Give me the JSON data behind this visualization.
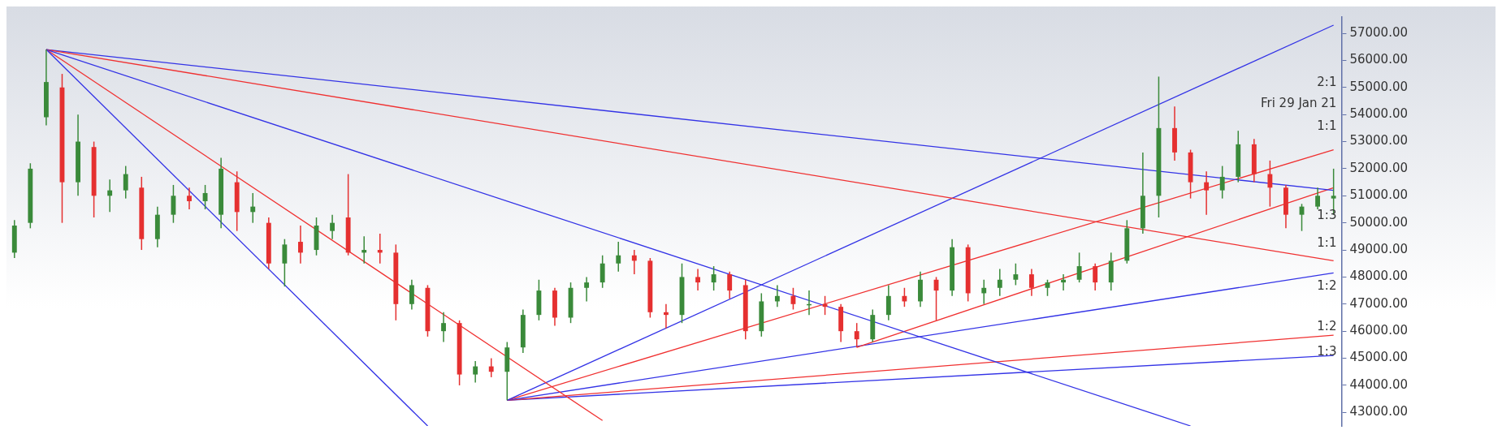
{
  "chart_data": {
    "type": "candlestick",
    "categories": [
      null,
      null,
      null,
      null,
      null,
      null,
      null,
      null,
      null,
      null,
      null,
      null,
      null,
      null,
      null,
      null,
      null,
      null,
      null,
      null,
      null,
      null,
      null,
      null,
      null,
      null,
      null,
      null,
      null,
      null,
      null,
      null,
      null,
      null,
      null,
      null,
      null,
      null,
      null,
      null,
      null,
      null,
      null,
      null,
      null,
      null,
      null,
      null,
      null,
      null,
      null,
      null,
      null,
      null,
      null,
      null,
      null,
      null,
      null,
      null,
      null,
      null,
      null,
      null,
      null,
      null,
      null,
      null,
      null,
      null,
      null,
      null,
      null,
      null,
      null,
      null,
      null,
      null,
      null,
      null,
      null,
      null,
      null,
      null
    ],
    "ohlc": [
      [
        48900,
        50100,
        48700,
        49900
      ],
      [
        50000,
        52200,
        49800,
        52000
      ],
      [
        53900,
        56400,
        53600,
        55200
      ],
      [
        55000,
        55500,
        50000,
        51500
      ],
      [
        51500,
        54000,
        51000,
        53000
      ],
      [
        52800,
        53000,
        50200,
        51000
      ],
      [
        51000,
        51600,
        50400,
        51200
      ],
      [
        51200,
        52100,
        50900,
        51800
      ],
      [
        51300,
        51700,
        49000,
        49400
      ],
      [
        49400,
        50600,
        49100,
        50300
      ],
      [
        50300,
        51400,
        50000,
        51000
      ],
      [
        51000,
        51300,
        50500,
        50800
      ],
      [
        50800,
        51400,
        50500,
        51100
      ],
      [
        50300,
        52400,
        49800,
        52000
      ],
      [
        51500,
        51900,
        49700,
        50400
      ],
      [
        50400,
        51100,
        50000,
        50600
      ],
      [
        50000,
        50200,
        48300,
        48500
      ],
      [
        48500,
        49400,
        47650,
        49200
      ],
      [
        49300,
        49900,
        48500,
        48900
      ],
      [
        49000,
        50200,
        48800,
        49900
      ],
      [
        49700,
        50300,
        49400,
        50000
      ],
      [
        50200,
        51800,
        48800,
        48900
      ],
      [
        48900,
        49500,
        48500,
        49000
      ],
      [
        49000,
        49600,
        48500,
        48900
      ],
      [
        48900,
        49200,
        46400,
        47000
      ],
      [
        47000,
        47900,
        46800,
        47700
      ],
      [
        47600,
        47700,
        45800,
        46000
      ],
      [
        46000,
        46700,
        45600,
        46300
      ],
      [
        46300,
        46400,
        44000,
        44400
      ],
      [
        44400,
        44900,
        44100,
        44700
      ],
      [
        44700,
        45000,
        44300,
        44500
      ],
      [
        44500,
        45600,
        43450,
        45400
      ],
      [
        45400,
        46800,
        45200,
        46600
      ],
      [
        46600,
        47900,
        46400,
        47500
      ],
      [
        47500,
        47600,
        46200,
        46500
      ],
      [
        46500,
        47800,
        46300,
        47600
      ],
      [
        47600,
        48000,
        47100,
        47800
      ],
      [
        47800,
        48800,
        47600,
        48500
      ],
      [
        48500,
        49300,
        48200,
        48800
      ],
      [
        48800,
        49000,
        48100,
        48600
      ],
      [
        48600,
        48700,
        46500,
        46700
      ],
      [
        46700,
        47000,
        46100,
        46600
      ],
      [
        46600,
        48500,
        46300,
        48000
      ],
      [
        48000,
        48300,
        47500,
        47800
      ],
      [
        47800,
        48400,
        47500,
        48100
      ],
      [
        48100,
        48200,
        47200,
        47500
      ],
      [
        47700,
        47900,
        45700,
        46000
      ],
      [
        46000,
        47400,
        45800,
        47100
      ],
      [
        47100,
        47700,
        46900,
        47300
      ],
      [
        47300,
        47600,
        46800,
        47000
      ],
      [
        47000,
        47500,
        46600,
        47000
      ],
      [
        47000,
        47300,
        46600,
        46900
      ],
      [
        46900,
        47000,
        45600,
        46000
      ],
      [
        46000,
        46300,
        45400,
        45700
      ],
      [
        45700,
        46800,
        45600,
        46600
      ],
      [
        46600,
        47700,
        46400,
        47300
      ],
      [
        47300,
        47600,
        46900,
        47100
      ],
      [
        47100,
        48200,
        46900,
        47900
      ],
      [
        47900,
        48000,
        46400,
        47500
      ],
      [
        47500,
        49400,
        47300,
        49100
      ],
      [
        49100,
        49200,
        47100,
        47400
      ],
      [
        47400,
        47900,
        47000,
        47600
      ],
      [
        47600,
        48300,
        47300,
        47900
      ],
      [
        47900,
        48500,
        47700,
        48100
      ],
      [
        48100,
        48300,
        47300,
        47600
      ],
      [
        47600,
        47900,
        47300,
        47800
      ],
      [
        47800,
        48100,
        47500,
        47900
      ],
      [
        47900,
        48900,
        47800,
        48400
      ],
      [
        48400,
        48500,
        47500,
        47800
      ],
      [
        47800,
        48900,
        47500,
        48600
      ],
      [
        48600,
        50100,
        48500,
        49800
      ],
      [
        49800,
        52600,
        49600,
        51000
      ],
      [
        51000,
        55400,
        50200,
        53500
      ],
      [
        53500,
        54300,
        52300,
        52600
      ],
      [
        52600,
        52700,
        50900,
        51500
      ],
      [
        51500,
        51900,
        50300,
        51200
      ],
      [
        51200,
        52100,
        50900,
        51700
      ],
      [
        51700,
        53400,
        51500,
        52900
      ],
      [
        52900,
        53100,
        51500,
        51800
      ],
      [
        51800,
        52300,
        50600,
        51300
      ],
      [
        51300,
        51400,
        49800,
        50300
      ],
      [
        50300,
        50700,
        49700,
        50600
      ],
      [
        50600,
        51300,
        50500,
        51000
      ],
      [
        50900,
        52000,
        50300,
        51000
      ]
    ],
    "series": [
      {
        "type": "line",
        "color": "#3333e6",
        "values": [
          null,
          null,
          56400,
          null,
          null,
          null,
          null,
          null,
          null,
          null,
          null,
          null,
          null,
          null,
          null,
          null,
          null,
          null,
          null,
          null,
          null,
          null,
          null,
          null,
          null,
          null,
          42500,
          null,
          null,
          null,
          null,
          null,
          null,
          null,
          null,
          null,
          null,
          null,
          null,
          null,
          null,
          null,
          null,
          null,
          null,
          null,
          null,
          null,
          null,
          null,
          null,
          null,
          null,
          null,
          null,
          null,
          null,
          null,
          null,
          null,
          null,
          null,
          null,
          null,
          null,
          null,
          null,
          null,
          null,
          null,
          null,
          null,
          null,
          null,
          null,
          null,
          null,
          null,
          null,
          null,
          null,
          null,
          null,
          null
        ]
      },
      {
        "type": "line",
        "color": "#f03030",
        "values": [
          null,
          null,
          56400,
          null,
          null,
          null,
          null,
          null,
          null,
          null,
          null,
          null,
          null,
          null,
          null,
          null,
          null,
          null,
          null,
          null,
          null,
          null,
          null,
          null,
          null,
          null,
          null,
          null,
          null,
          null,
          null,
          null,
          null,
          null,
          null,
          null,
          null,
          42700,
          null,
          null,
          null,
          null,
          null,
          null,
          null,
          null,
          null,
          null,
          null,
          null,
          null,
          null,
          null,
          null,
          null,
          null,
          null,
          null,
          null,
          null,
          null,
          null,
          null,
          null,
          null,
          null,
          null,
          null,
          null,
          null,
          null,
          null,
          null,
          null,
          null,
          null,
          null,
          null,
          null,
          null,
          null,
          null,
          null,
          null
        ]
      },
      {
        "type": "line",
        "color": "#3333e6",
        "values": [
          null,
          null,
          56400,
          null,
          null,
          null,
          null,
          null,
          null,
          null,
          null,
          null,
          null,
          null,
          null,
          null,
          null,
          null,
          null,
          null,
          null,
          null,
          null,
          null,
          null,
          null,
          null,
          null,
          null,
          null,
          null,
          null,
          null,
          null,
          null,
          null,
          null,
          null,
          null,
          null,
          null,
          null,
          null,
          null,
          null,
          null,
          null,
          null,
          null,
          null,
          null,
          null,
          null,
          null,
          null,
          null,
          null,
          null,
          null,
          null,
          null,
          null,
          null,
          null,
          null,
          null,
          null,
          null,
          null,
          null,
          null,
          null,
          null,
          null,
          42500,
          null,
          null,
          null,
          null,
          null,
          null,
          null,
          null,
          null
        ]
      },
      {
        "type": "line",
        "color": "#f03030",
        "values": [
          null,
          null,
          56400,
          null,
          null,
          null,
          null,
          null,
          null,
          null,
          null,
          null,
          null,
          null,
          null,
          null,
          null,
          null,
          null,
          null,
          null,
          null,
          null,
          null,
          null,
          null,
          null,
          null,
          null,
          null,
          null,
          null,
          null,
          null,
          null,
          null,
          null,
          null,
          null,
          null,
          null,
          null,
          null,
          null,
          null,
          null,
          null,
          null,
          null,
          null,
          null,
          null,
          null,
          null,
          null,
          null,
          null,
          null,
          null,
          null,
          null,
          null,
          null,
          null,
          null,
          null,
          null,
          null,
          null,
          null,
          null,
          null,
          null,
          null,
          null,
          null,
          null,
          null,
          null,
          null,
          null,
          null,
          null,
          48600
        ]
      },
      {
        "type": "line",
        "color": "#3333e6",
        "values": [
          null,
          null,
          56400,
          null,
          null,
          null,
          null,
          null,
          null,
          null,
          null,
          null,
          null,
          null,
          null,
          null,
          null,
          null,
          null,
          null,
          null,
          null,
          null,
          null,
          null,
          null,
          null,
          null,
          null,
          null,
          null,
          null,
          null,
          null,
          null,
          null,
          null,
          null,
          null,
          null,
          null,
          null,
          null,
          null,
          null,
          null,
          null,
          null,
          null,
          null,
          null,
          null,
          null,
          null,
          null,
          null,
          null,
          null,
          null,
          null,
          null,
          null,
          null,
          null,
          null,
          null,
          null,
          null,
          null,
          null,
          null,
          null,
          null,
          null,
          null,
          null,
          null,
          null,
          null,
          null,
          null,
          null,
          null,
          51200
        ]
      },
      {
        "type": "line",
        "color": "#3333e6",
        "values": [
          null,
          null,
          null,
          null,
          null,
          null,
          null,
          null,
          null,
          null,
          null,
          null,
          null,
          null,
          null,
          null,
          null,
          null,
          null,
          null,
          null,
          null,
          null,
          null,
          null,
          null,
          null,
          null,
          null,
          null,
          null,
          43450,
          null,
          null,
          null,
          null,
          null,
          null,
          null,
          null,
          null,
          null,
          null,
          null,
          null,
          null,
          null,
          null,
          null,
          null,
          null,
          null,
          null,
          null,
          null,
          null,
          null,
          null,
          null,
          null,
          null,
          null,
          null,
          null,
          null,
          null,
          null,
          null,
          null,
          null,
          null,
          null,
          null,
          null,
          null,
          null,
          null,
          null,
          null,
          null,
          null,
          null,
          null,
          57300
        ]
      },
      {
        "type": "line",
        "color": "#f03030",
        "values": [
          null,
          null,
          null,
          null,
          null,
          null,
          null,
          null,
          null,
          null,
          null,
          null,
          null,
          null,
          null,
          null,
          null,
          null,
          null,
          null,
          null,
          null,
          null,
          null,
          null,
          null,
          null,
          null,
          null,
          null,
          null,
          43450,
          null,
          null,
          null,
          null,
          null,
          null,
          null,
          null,
          null,
          null,
          null,
          null,
          null,
          null,
          null,
          null,
          null,
          null,
          null,
          null,
          null,
          null,
          null,
          null,
          null,
          null,
          null,
          null,
          null,
          null,
          null,
          null,
          null,
          null,
          null,
          null,
          null,
          null,
          null,
          null,
          null,
          null,
          null,
          null,
          null,
          null,
          null,
          null,
          null,
          null,
          null,
          52700
        ]
      },
      {
        "type": "line",
        "color": "#f03030",
        "values": [
          null,
          null,
          null,
          null,
          null,
          null,
          null,
          null,
          null,
          null,
          null,
          null,
          null,
          null,
          null,
          null,
          null,
          null,
          null,
          null,
          null,
          null,
          null,
          null,
          null,
          null,
          null,
          null,
          null,
          null,
          null,
          null,
          null,
          null,
          null,
          null,
          null,
          null,
          null,
          null,
          null,
          null,
          null,
          null,
          null,
          null,
          null,
          null,
          null,
          null,
          null,
          null,
          null,
          45400,
          null,
          null,
          null,
          null,
          null,
          null,
          null,
          null,
          null,
          null,
          null,
          null,
          null,
          null,
          null,
          null,
          null,
          null,
          null,
          null,
          null,
          null,
          null,
          null,
          null,
          null,
          null,
          null,
          null,
          51300
        ]
      },
      {
        "type": "line",
        "color": "#3333e6",
        "values": [
          null,
          null,
          null,
          null,
          null,
          null,
          null,
          null,
          null,
          null,
          null,
          null,
          null,
          null,
          null,
          null,
          null,
          null,
          null,
          null,
          null,
          null,
          null,
          null,
          null,
          null,
          null,
          null,
          null,
          null,
          null,
          43450,
          null,
          null,
          null,
          null,
          null,
          null,
          null,
          null,
          null,
          null,
          null,
          null,
          null,
          null,
          null,
          null,
          null,
          null,
          null,
          null,
          null,
          null,
          null,
          null,
          null,
          null,
          null,
          null,
          null,
          null,
          null,
          null,
          null,
          null,
          null,
          null,
          null,
          null,
          null,
          null,
          null,
          null,
          null,
          null,
          null,
          null,
          null,
          null,
          null,
          null,
          null,
          48150
        ]
      },
      {
        "type": "line",
        "color": "#f03030",
        "values": [
          null,
          null,
          null,
          null,
          null,
          null,
          null,
          null,
          null,
          null,
          null,
          null,
          null,
          null,
          null,
          null,
          null,
          null,
          null,
          null,
          null,
          null,
          null,
          null,
          null,
          null,
          null,
          null,
          null,
          null,
          null,
          43450,
          null,
          null,
          null,
          null,
          null,
          null,
          null,
          null,
          null,
          null,
          null,
          null,
          null,
          null,
          null,
          null,
          null,
          null,
          null,
          null,
          null,
          null,
          null,
          null,
          null,
          null,
          null,
          null,
          null,
          null,
          null,
          null,
          null,
          null,
          null,
          null,
          null,
          null,
          null,
          null,
          null,
          null,
          null,
          null,
          null,
          null,
          null,
          null,
          null,
          null,
          null,
          45850
        ]
      },
      {
        "type": "line",
        "color": "#3333e6",
        "values": [
          null,
          null,
          null,
          null,
          null,
          null,
          null,
          null,
          null,
          null,
          null,
          null,
          null,
          null,
          null,
          null,
          null,
          null,
          null,
          null,
          null,
          null,
          null,
          null,
          null,
          null,
          null,
          null,
          null,
          null,
          null,
          43450,
          null,
          null,
          null,
          null,
          null,
          null,
          null,
          null,
          null,
          null,
          null,
          null,
          null,
          null,
          null,
          null,
          null,
          null,
          null,
          null,
          null,
          null,
          null,
          null,
          null,
          null,
          null,
          null,
          null,
          null,
          null,
          null,
          null,
          null,
          null,
          null,
          null,
          null,
          null,
          null,
          null,
          null,
          null,
          null,
          null,
          null,
          null,
          null,
          null,
          null,
          null,
          45100
        ]
      }
    ],
    "annotations": [
      "2:1",
      "Fri 29 Jan 21",
      "1:1",
      "1:3",
      "1:1",
      "1:2",
      "1:2",
      "1:3"
    ],
    "ylim": [
      42500,
      57600
    ],
    "yticks": [
      {
        "value": 43000,
        "label": "43000.00"
      },
      {
        "value": 44000,
        "label": "44000.00"
      },
      {
        "value": 45000,
        "label": "45000.00"
      },
      {
        "value": 46000,
        "label": "46000.00"
      },
      {
        "value": 47000,
        "label": "47000.00"
      },
      {
        "value": 48000,
        "label": "48000.00"
      },
      {
        "value": 49000,
        "label": "49000.00"
      },
      {
        "value": 50000,
        "label": "50000.00"
      },
      {
        "value": 51000,
        "label": "51000.00"
      },
      {
        "value": 52000,
        "label": "52000.00"
      },
      {
        "value": 53000,
        "label": "53000.00"
      },
      {
        "value": 54000,
        "label": "54000.00"
      },
      {
        "value": 55000,
        "label": "55000.00"
      },
      {
        "value": 56000,
        "label": "56000.00"
      },
      {
        "value": 57000,
        "label": "57000.00"
      }
    ],
    "tick_labels": "y",
    "grid": false,
    "legend": false
  }
}
